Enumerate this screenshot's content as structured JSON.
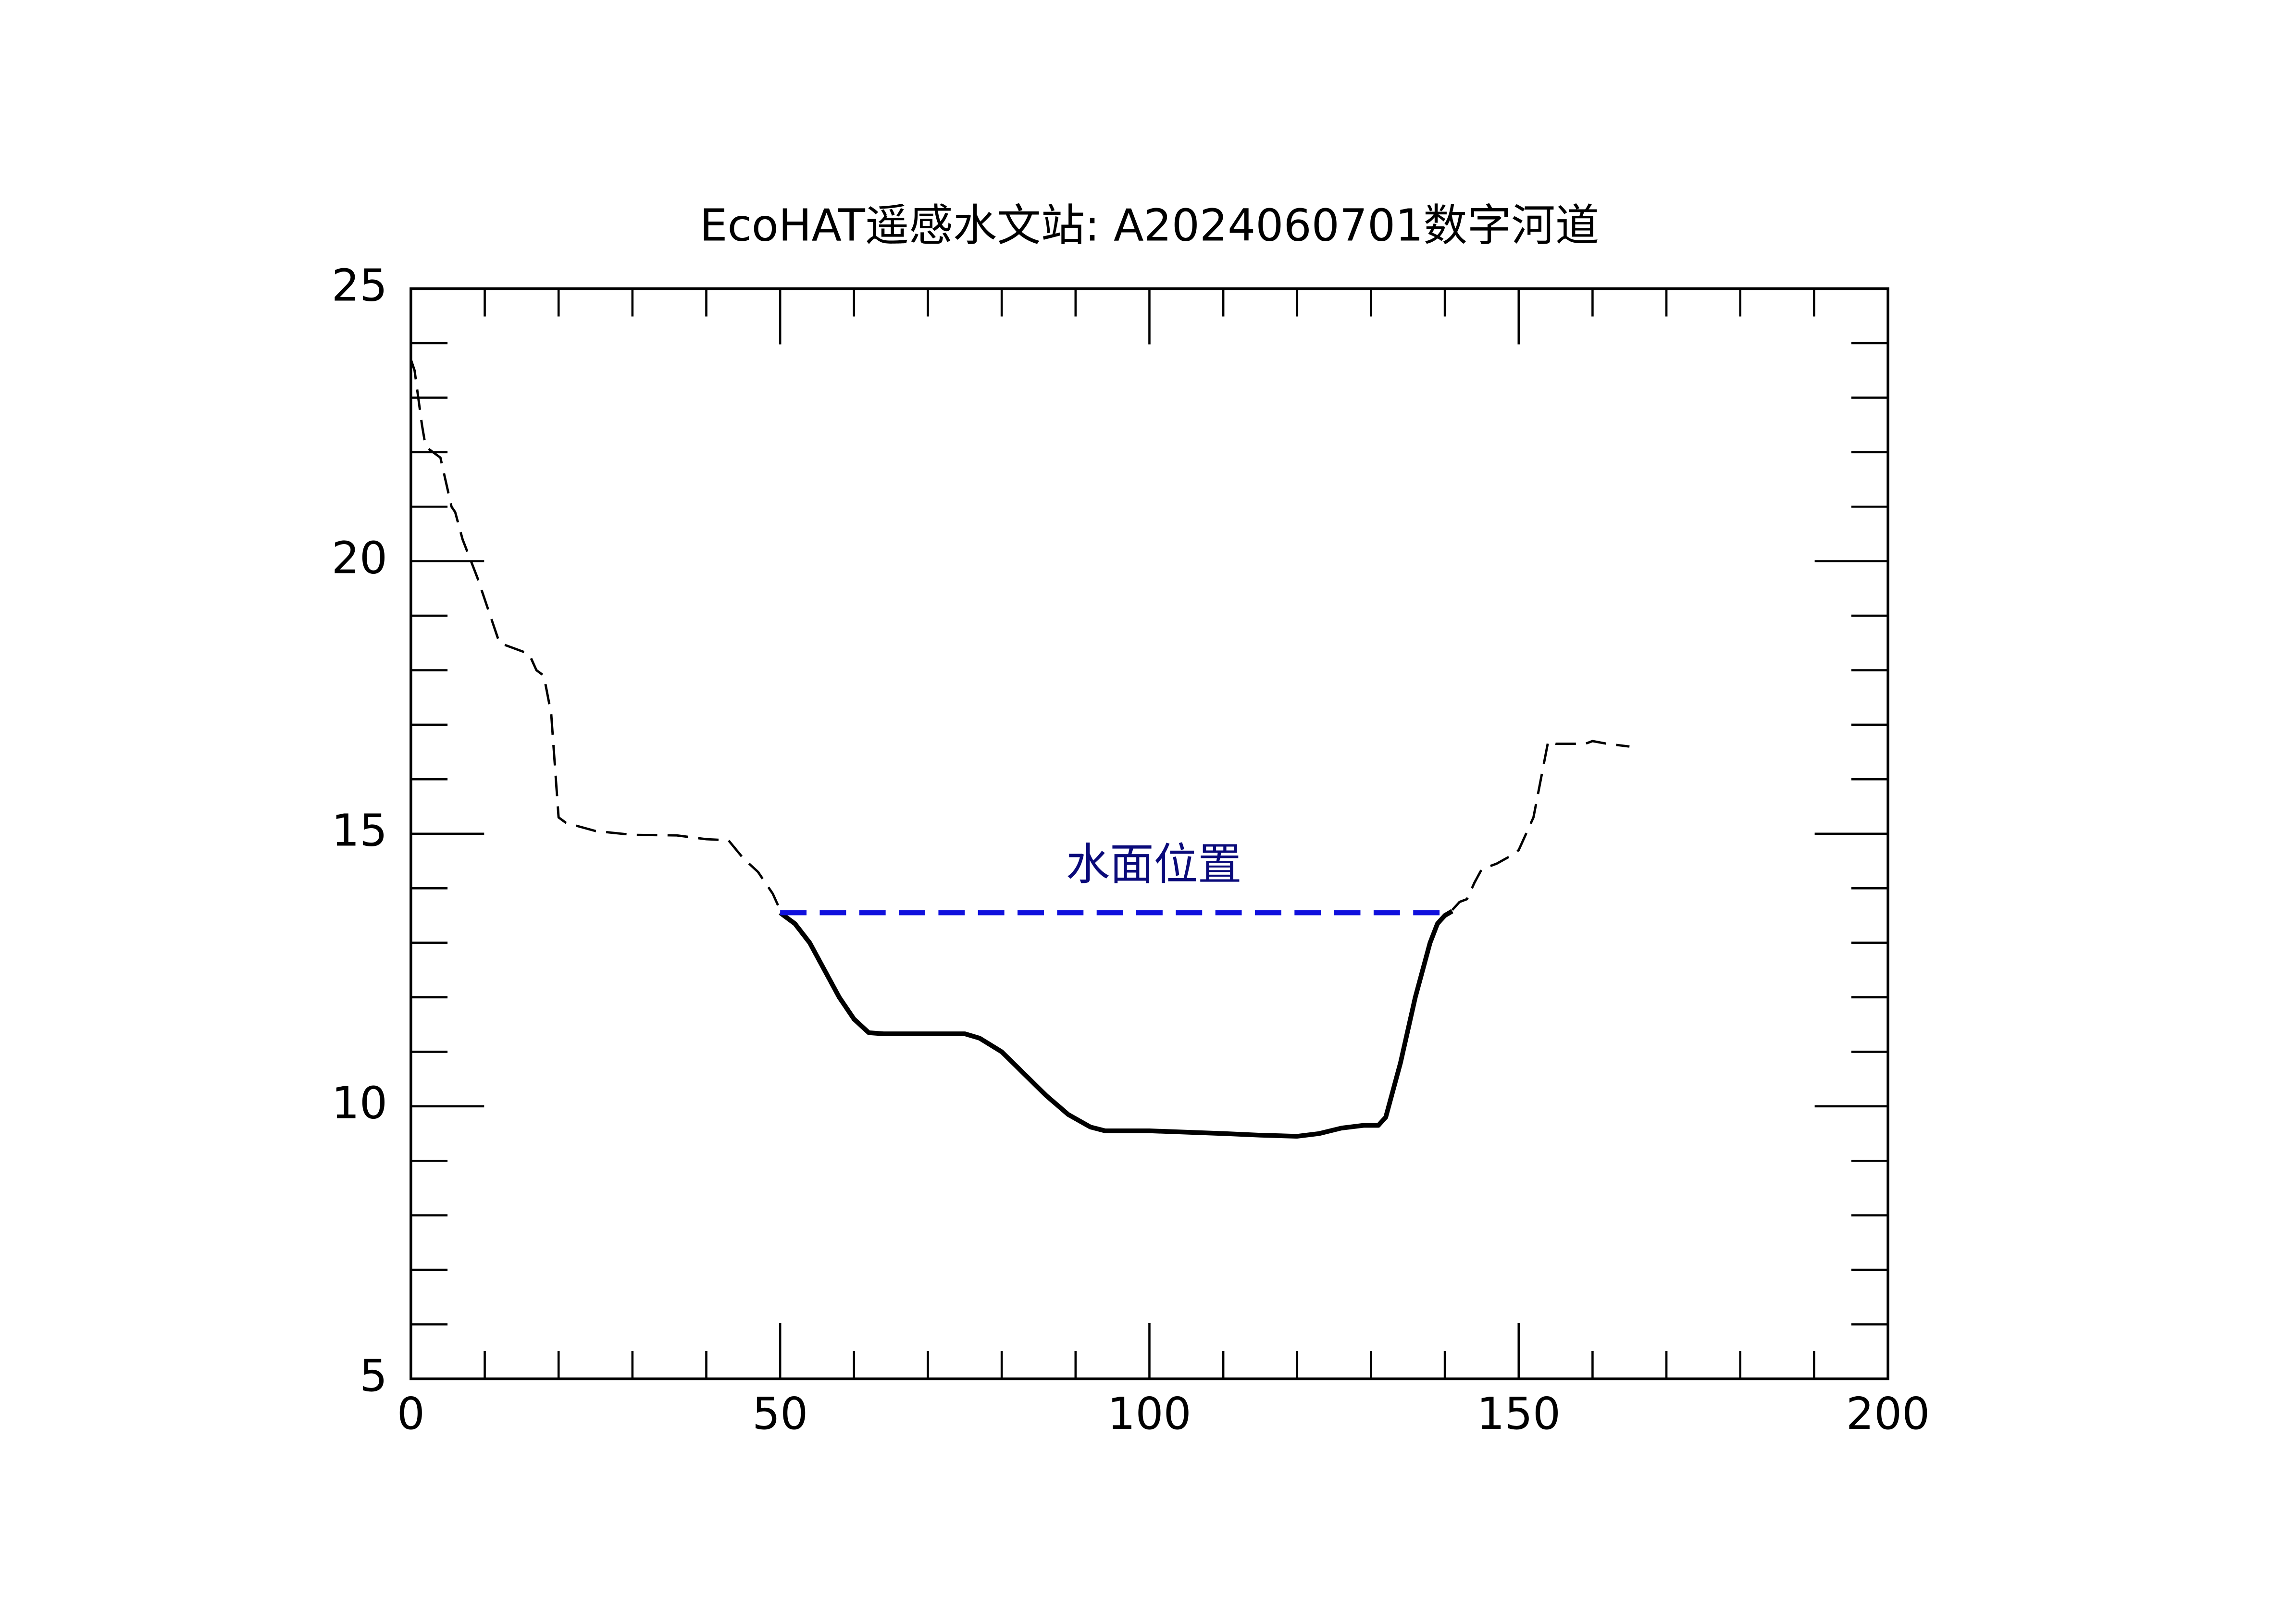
{
  "chart_data": {
    "type": "line",
    "title": "EcoHAT遥感水文站: A2024060701数字河道",
    "annotation": "水面位置",
    "annotation_color": "#0a0a7a",
    "xlim": [
      0,
      200
    ],
    "xticks": [
      0,
      50,
      100,
      150,
      200
    ],
    "xminorticks": [
      10,
      20,
      30,
      40,
      60,
      70,
      80,
      90,
      110,
      120,
      130,
      140,
      160,
      170,
      180,
      190
    ],
    "ylim": [
      5,
      25
    ],
    "yticks": [
      5,
      10,
      15,
      20,
      25
    ],
    "yminorticks": [
      6,
      7,
      8,
      9,
      11,
      12,
      13,
      14,
      16,
      17,
      18,
      19,
      21,
      22,
      23,
      24
    ],
    "series": [
      {
        "color": "#000000",
        "style": "dashed",
        "x": [
          0,
          0.5,
          1.5,
          2,
          4,
          5,
          5.5,
          6,
          7,
          9,
          12,
          14,
          16,
          17,
          18,
          19,
          20,
          21,
          25,
          30,
          36,
          40,
          43,
          45,
          47,
          48,
          49,
          50,
          null,
          141,
          142,
          143,
          144,
          145,
          147,
          149,
          150,
          152,
          153,
          154,
          155,
          159,
          160,
          162,
          165
        ],
        "values": [
          23.7,
          23.5,
          22.5,
          22.1,
          21.9,
          21.3,
          21,
          20.9,
          20.4,
          19.7,
          18.5,
          18.4,
          18.3,
          18.0,
          17.9,
          17.2,
          15.3,
          15.2,
          15.05,
          14.98,
          14.97,
          14.9,
          14.88,
          14.55,
          14.3,
          14.1,
          13.9,
          13.6,
          null,
          13.6,
          13.75,
          13.8,
          14.1,
          14.35,
          14.45,
          14.6,
          14.7,
          15.3,
          16.0,
          16.7,
          16.65,
          16.65,
          16.7,
          16.65,
          16.6
        ]
      },
      {
        "color": "#000000",
        "style": "solid",
        "x": [
          50,
          52,
          54,
          56,
          58,
          60,
          62,
          64,
          70,
          75,
          77,
          80,
          83,
          86,
          89,
          92,
          94,
          100,
          110,
          115,
          120,
          123,
          126,
          129,
          131,
          132,
          134,
          136,
          138,
          139,
          140,
          141
        ],
        "values": [
          13.55,
          13.35,
          13.0,
          12.5,
          12.0,
          11.6,
          11.35,
          11.33,
          11.33,
          11.33,
          11.25,
          11.0,
          10.6,
          10.2,
          9.85,
          9.62,
          9.55,
          9.55,
          9.5,
          9.47,
          9.45,
          9.5,
          9.6,
          9.65,
          9.65,
          9.8,
          10.8,
          12.0,
          13.0,
          13.35,
          13.5,
          13.58
        ]
      },
      {
        "color": "#1010dd",
        "style": "water",
        "x": [
          50,
          141
        ],
        "values": [
          13.55,
          13.55
        ]
      }
    ]
  }
}
